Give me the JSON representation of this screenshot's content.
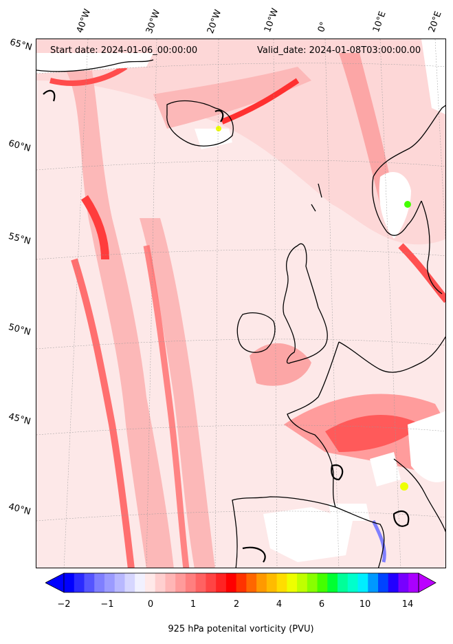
{
  "header": {
    "start_date": "Start date: 2024-01-06_00:00:00",
    "valid_date": "Valid_date: 2024-01-08T03:00:00.00"
  },
  "lon_labels": [
    "40°W",
    "30°W",
    "20°W",
    "10°W",
    "0°",
    "10°E",
    "20°E"
  ],
  "lat_labels": [
    "65°N",
    "60°N",
    "55°N",
    "50°N",
    "45°N",
    "40°N"
  ],
  "colorbar": {
    "label": "925 hPa potenital vorticity (PVU)",
    "ticks": [
      "−2",
      "−1",
      "0",
      "1",
      "2",
      "4",
      "6",
      "10",
      "14"
    ],
    "colors": [
      "#0000ff",
      "#2a2aff",
      "#5555ff",
      "#7f7fff",
      "#9b9bff",
      "#b8b8ff",
      "#d6d6ff",
      "#f1f1ff",
      "#ffe9e9",
      "#ffcfcf",
      "#ffb6b6",
      "#ff9b9b",
      "#ff7f7f",
      "#ff6262",
      "#ff4444",
      "#ff2323",
      "#ff0000",
      "#ff3300",
      "#ff6600",
      "#ff9900",
      "#ffbb00",
      "#ffdd00",
      "#eeff00",
      "#c0ff00",
      "#88ff00",
      "#44ff00",
      "#00ff33",
      "#00ff99",
      "#00ffcc",
      "#00eeff",
      "#0099ff",
      "#0044ff",
      "#2200ff",
      "#7700ff",
      "#aa00ff"
    ],
    "extend_low_color": "#0000ff",
    "extend_high_color": "#bb00ff"
  },
  "colors": {
    "land_outline": "#000000",
    "background_field": "#fde8e8",
    "strong_band": "#ff3c3c",
    "medium_band": "#ff8c8c",
    "weak_band": "#fcb8b8",
    "missing": "#ffffff"
  }
}
